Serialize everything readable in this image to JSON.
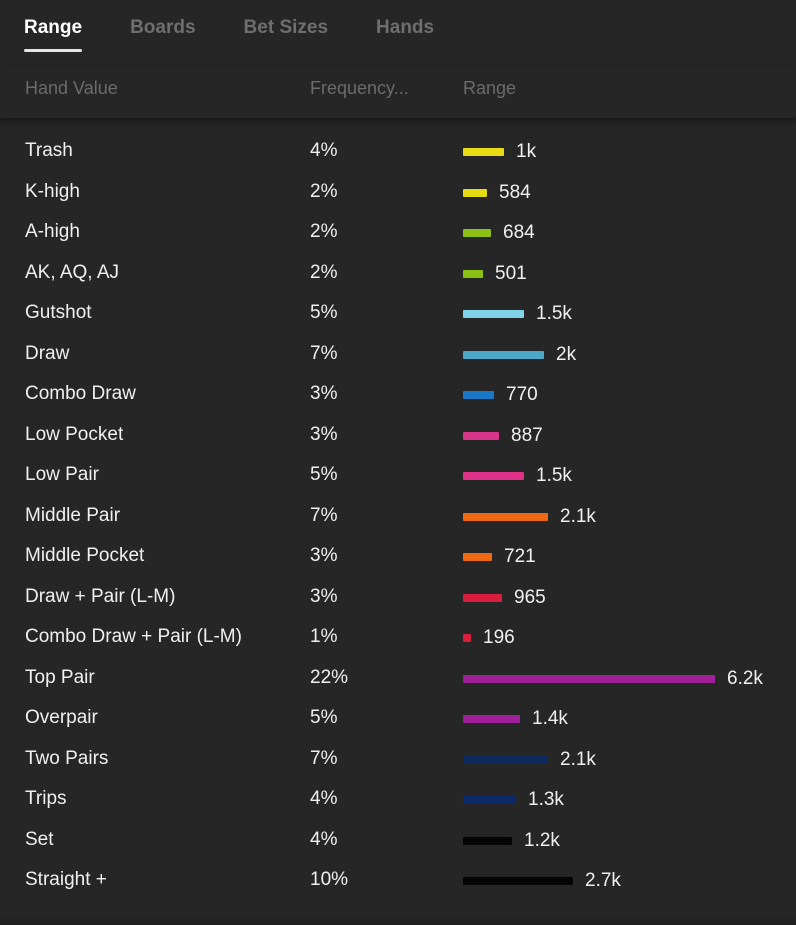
{
  "tabs": [
    {
      "label": "Range",
      "active": true
    },
    {
      "label": "Boards",
      "active": false
    },
    {
      "label": "Bet Sizes",
      "active": false
    },
    {
      "label": "Hands",
      "active": false
    }
  ],
  "header": {
    "hand_value": "Hand Value",
    "frequency": "Frequency...",
    "range": "Range"
  },
  "rows": [
    {
      "name": "Trash",
      "freq": "4%",
      "count": "1k",
      "value": 1000,
      "color": "#e6dc14"
    },
    {
      "name": "K-high",
      "freq": "2%",
      "count": "584",
      "value": 584,
      "color": "#e6dc14"
    },
    {
      "name": "A-high",
      "freq": "2%",
      "count": "684",
      "value": 684,
      "color": "#8cc014"
    },
    {
      "name": "AK, AQ, AJ",
      "freq": "2%",
      "count": "501",
      "value": 501,
      "color": "#8cc014"
    },
    {
      "name": "Gutshot",
      "freq": "5%",
      "count": "1.5k",
      "value": 1500,
      "color": "#7fd4ea"
    },
    {
      "name": "Draw",
      "freq": "7%",
      "count": "2k",
      "value": 2000,
      "color": "#4aa8c8"
    },
    {
      "name": "Combo Draw",
      "freq": "3%",
      "count": "770",
      "value": 770,
      "color": "#1a78c8"
    },
    {
      "name": "Low Pocket",
      "freq": "3%",
      "count": "887",
      "value": 887,
      "color": "#d8358a"
    },
    {
      "name": "Low Pair",
      "freq": "5%",
      "count": "1.5k",
      "value": 1500,
      "color": "#e0308a"
    },
    {
      "name": "Middle Pair",
      "freq": "7%",
      "count": "2.1k",
      "value": 2100,
      "color": "#f06a14"
    },
    {
      "name": "Middle Pocket",
      "freq": "3%",
      "count": "721",
      "value": 721,
      "color": "#f06a14"
    },
    {
      "name": "Draw + Pair (L-M)",
      "freq": "3%",
      "count": "965",
      "value": 965,
      "color": "#d81e3c"
    },
    {
      "name": "Combo Draw + Pair (L-M)",
      "freq": "1%",
      "count": "196",
      "value": 196,
      "color": "#d81e3c"
    },
    {
      "name": "Top Pair",
      "freq": "22%",
      "count": "6.2k",
      "value": 6200,
      "color": "#a0209a"
    },
    {
      "name": "Overpair",
      "freq": "5%",
      "count": "1.4k",
      "value": 1400,
      "color": "#a0209a"
    },
    {
      "name": "Two Pairs",
      "freq": "7%",
      "count": "2.1k",
      "value": 2100,
      "color": "#0c2a5e"
    },
    {
      "name": "Trips",
      "freq": "4%",
      "count": "1.3k",
      "value": 1300,
      "color": "#0c2a68"
    },
    {
      "name": "Set",
      "freq": "4%",
      "count": "1.2k",
      "value": 1200,
      "color": "#050505"
    },
    {
      "name": "Straight +",
      "freq": "10%",
      "count": "2.7k",
      "value": 2700,
      "color": "#050505"
    }
  ]
}
